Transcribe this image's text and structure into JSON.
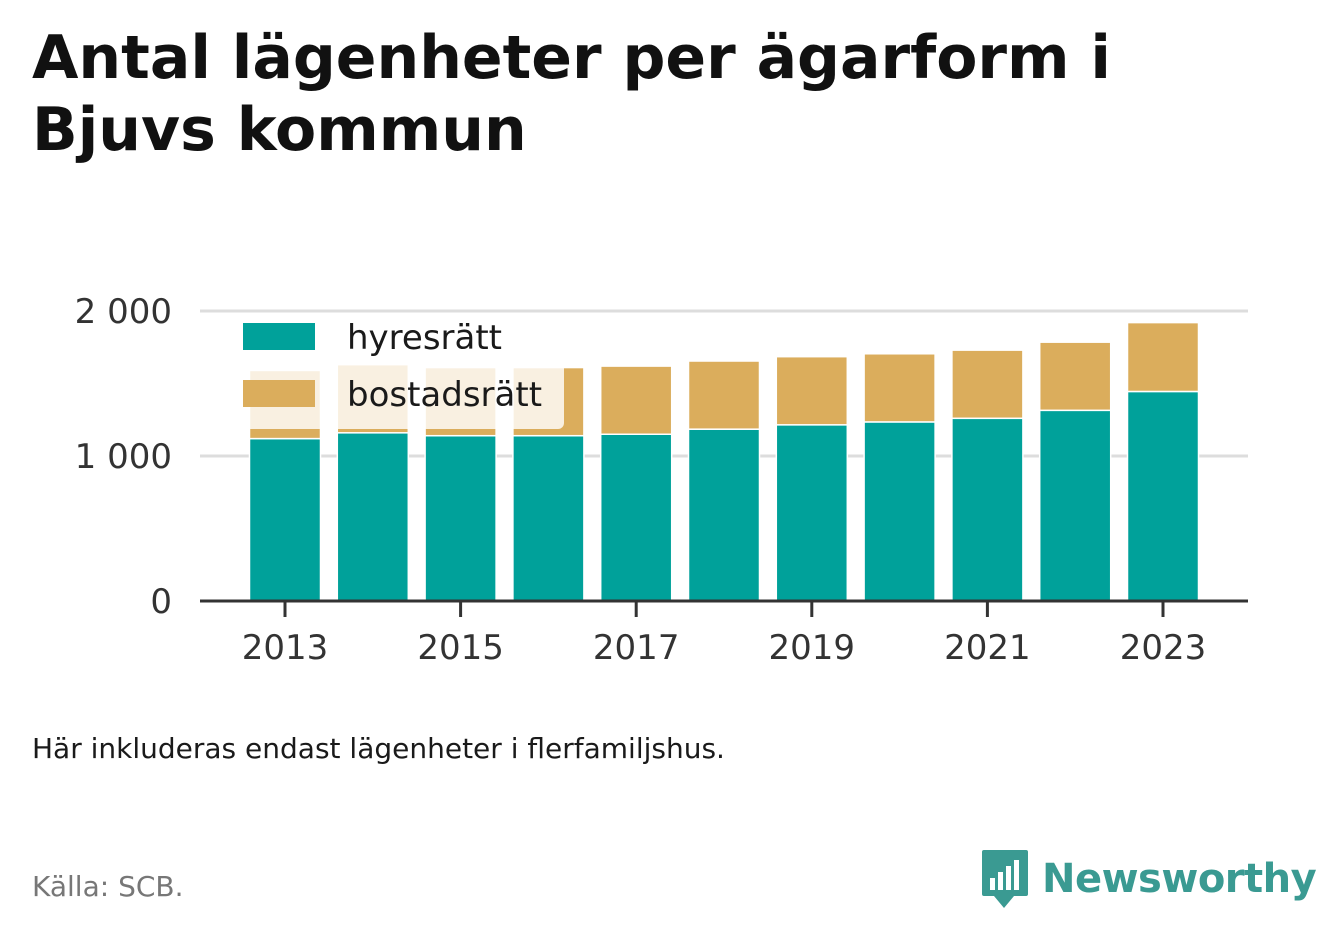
{
  "title": "Antal lägenheter per ägarform i Bjuvs kommun",
  "note": "Här inkluderas endast lägenheter i flerfamiljshus.",
  "source": "Källa: SCB.",
  "brand": "Newsworthy",
  "colors": {
    "hyresratt": "#00a19a",
    "bostadsratt": "#dbad5c",
    "brand": "#3a9a92",
    "grid": "#dddddd",
    "axis": "#333333"
  },
  "chart_data": {
    "type": "bar",
    "stacked": true,
    "categories": [
      "2013",
      "2014",
      "2015",
      "2016",
      "2017",
      "2018",
      "2019",
      "2020",
      "2021",
      "2022",
      "2023"
    ],
    "x_tick_labels": [
      "2013",
      "2015",
      "2017",
      "2019",
      "2021",
      "2023"
    ],
    "series": [
      {
        "name": "hyresrätt",
        "values": [
          1120,
          1160,
          1140,
          1140,
          1150,
          1185,
          1215,
          1235,
          1260,
          1315,
          1445
        ]
      },
      {
        "name": "bostadsrätt",
        "values": [
          470,
          470,
          470,
          470,
          470,
          470,
          470,
          470,
          470,
          470,
          475
        ]
      }
    ],
    "y_ticks": [
      0,
      1000,
      2000
    ],
    "y_tick_labels": [
      "0",
      "1 000",
      "2 000"
    ],
    "ylim": [
      0,
      2000
    ],
    "grid": true,
    "legend": "top-left"
  }
}
